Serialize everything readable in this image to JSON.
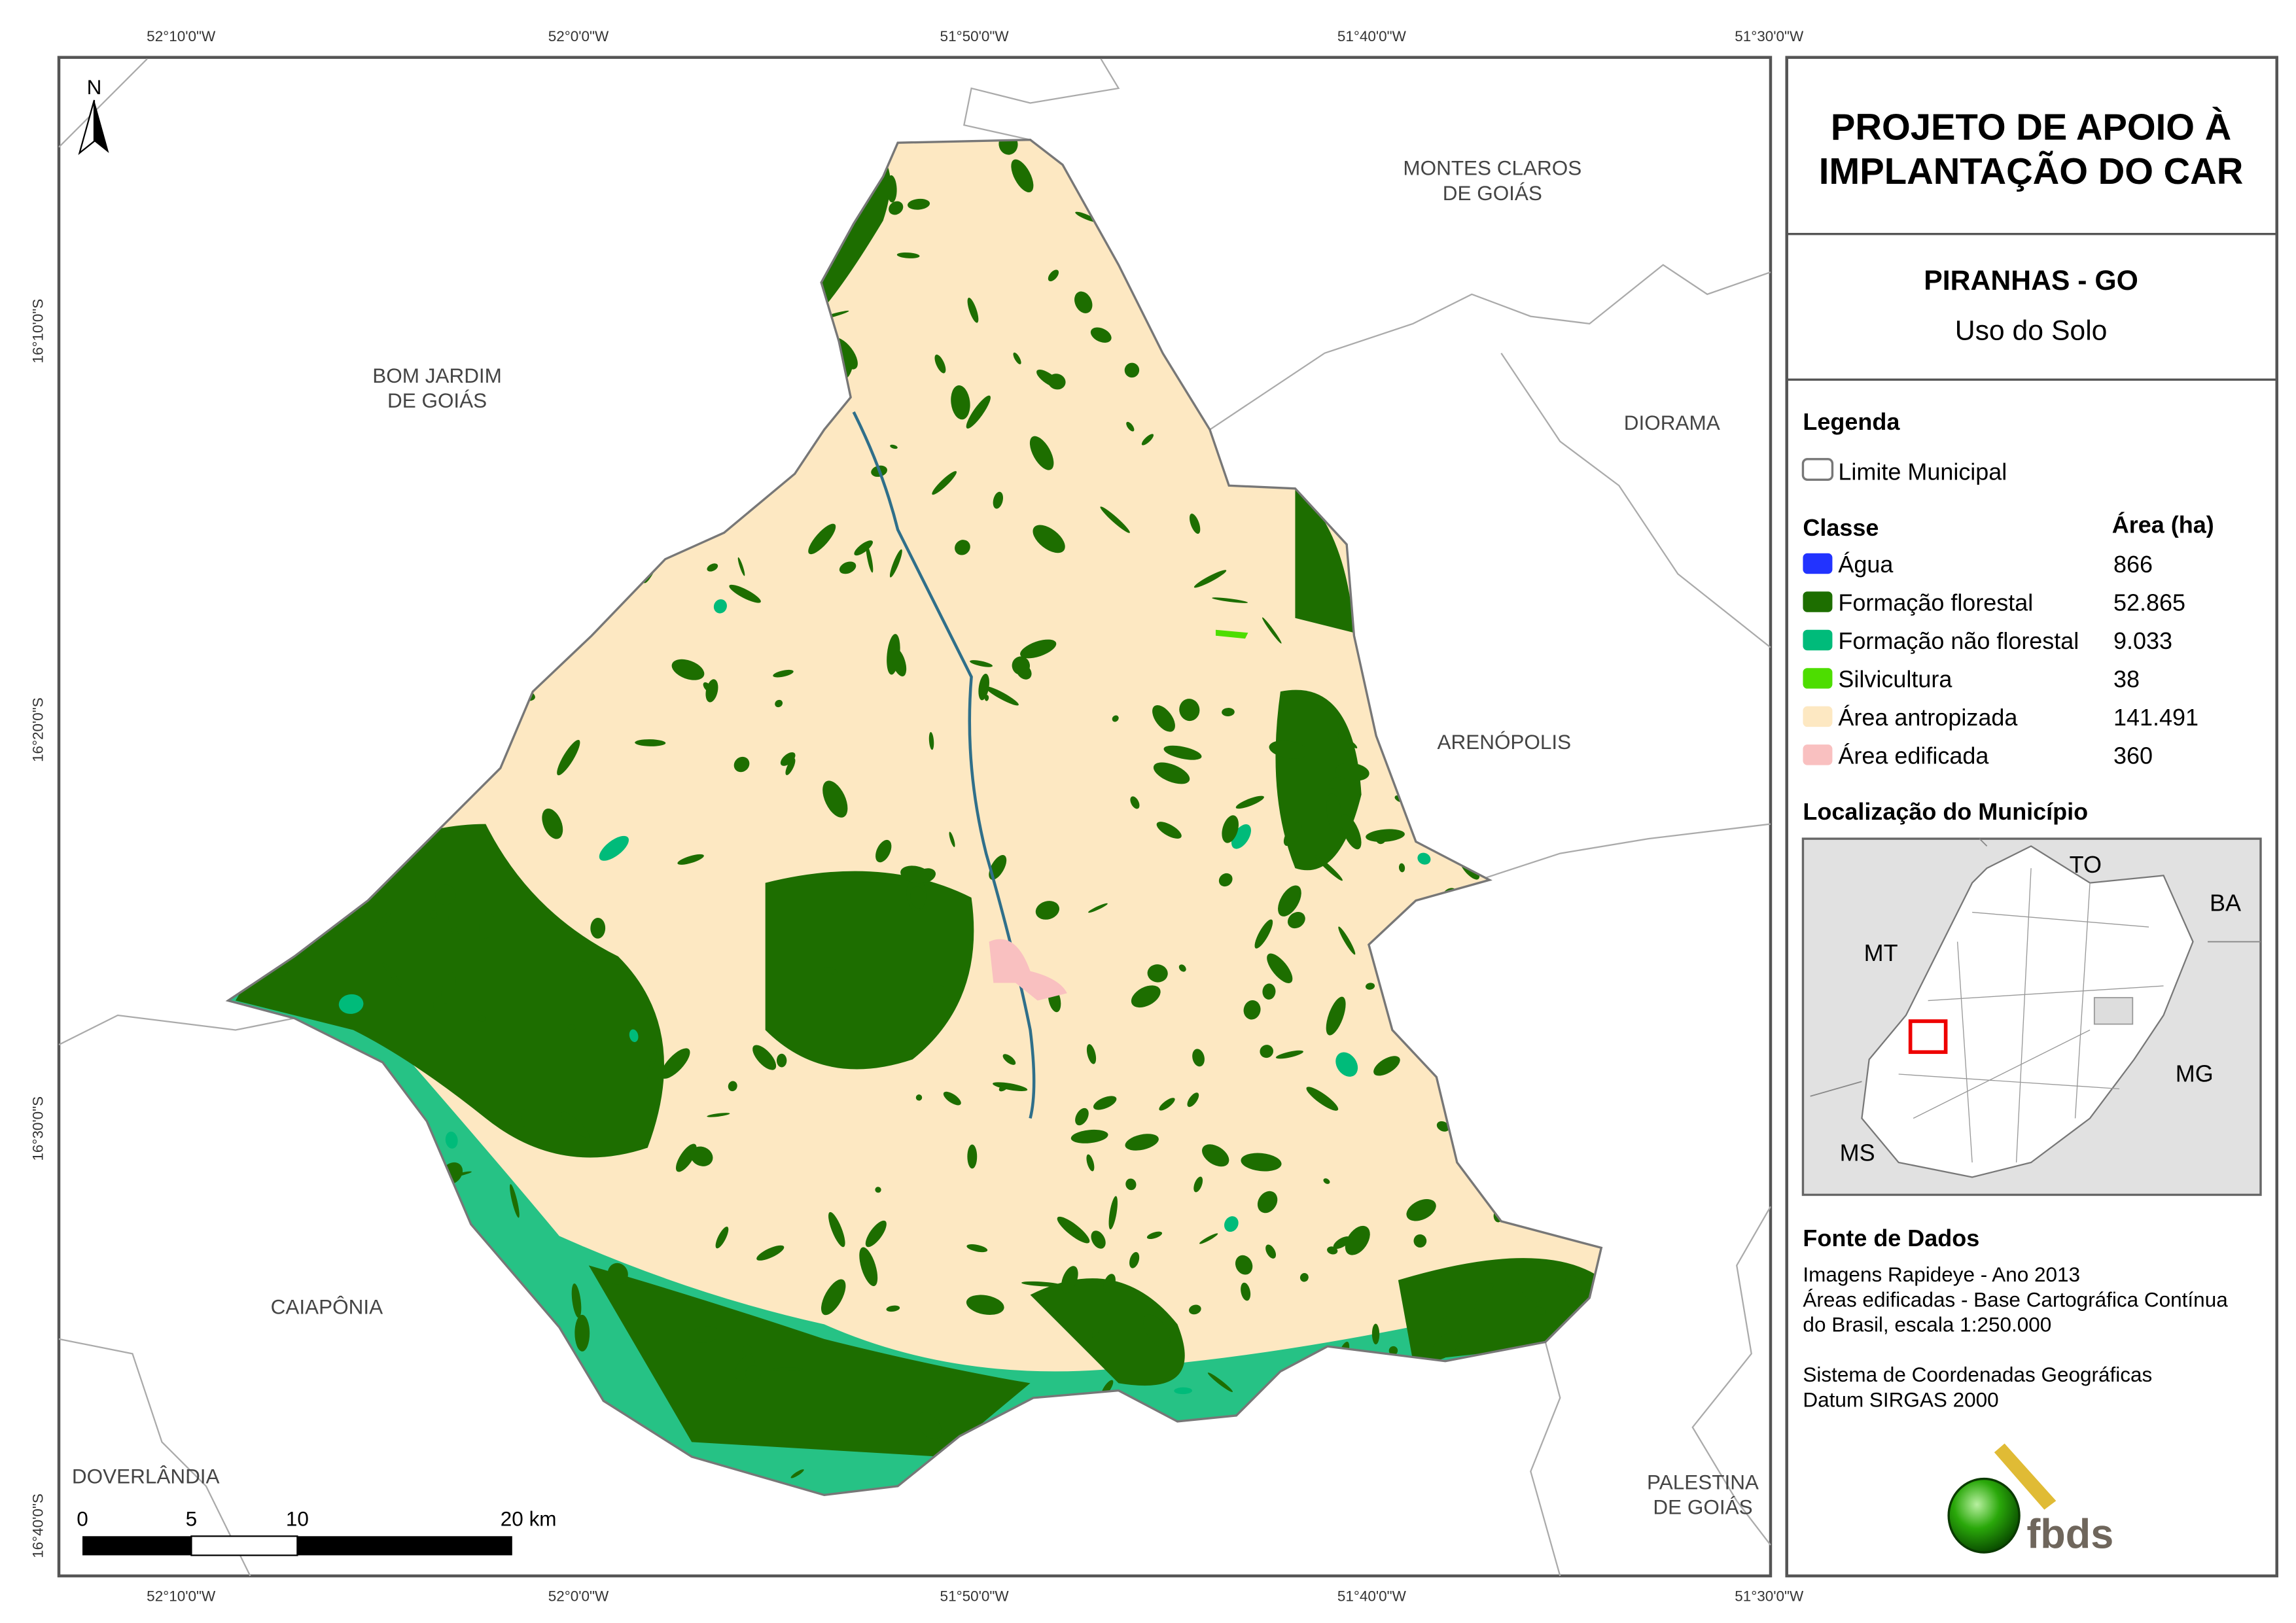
{
  "title": {
    "line1": "PROJETO DE APOIO À",
    "line2": "IMPLANTAÇÃO DO CAR"
  },
  "municipality": "PIRANHAS - GO",
  "subtitle": "Uso do Solo",
  "legend": {
    "heading": "Legenda",
    "boundary_label": "Limite Municipal",
    "class_header": "Classe",
    "area_header": "Área (ha)",
    "classes": [
      {
        "label": "Água",
        "area": "866",
        "color": "#2233ff"
      },
      {
        "label": "Formação florestal",
        "area": "52.865",
        "color": "#1d6e00"
      },
      {
        "label": "Formação não florestal",
        "area": "9.033",
        "color": "#00bb7a"
      },
      {
        "label": "Silvicultura",
        "area": "38",
        "color": "#4ddd00"
      },
      {
        "label": "Área antropizada",
        "area": "141.491",
        "color": "#fde8c2"
      },
      {
        "label": "Área edificada",
        "area": "360",
        "color": "#f9c0c0"
      }
    ]
  },
  "location": {
    "heading": "Localização do Município",
    "labels": {
      "to": "TO",
      "ba": "BA",
      "mt": "MT",
      "mg": "MG",
      "ms": "MS"
    }
  },
  "sources": {
    "heading": "Fonte de Dados",
    "lines": [
      "Imagens Rapideye - Ano 2013",
      "Áreas edificadas - Base Cartográfica Contínua",
      "do Brasil, escala 1:250.000"
    ],
    "crs": [
      "Sistema de Coordenadas Geográficas",
      "Datum SIRGAS 2000"
    ]
  },
  "logo_text": "fbds",
  "north": "N",
  "graticule": {
    "lon": [
      "52°10'0\"W",
      "52°0'0\"W",
      "51°50'0\"W",
      "51°40'0\"W",
      "51°30'0\"W"
    ],
    "lat": [
      "16°10'0\"S",
      "16°20'0\"S",
      "16°30'0\"S",
      "16°40'0\"S"
    ]
  },
  "places": {
    "bom_jardim": [
      "BOM JARDIM",
      "DE GOIÁS"
    ],
    "montes_claros": [
      "MONTES CLAROS",
      "DE GOIÁS"
    ],
    "diorama": "DIORAMA",
    "arenopolis": "ARENÓPOLIS",
    "caiaponia": "CAIAPÔNIA",
    "doverlandia": "DOVERLÂNDIA",
    "palestina": [
      "PALESTINA",
      "DE GOIÁS"
    ]
  },
  "scalebar": {
    "ticks": [
      "0",
      "5",
      "10",
      "20 km"
    ]
  }
}
